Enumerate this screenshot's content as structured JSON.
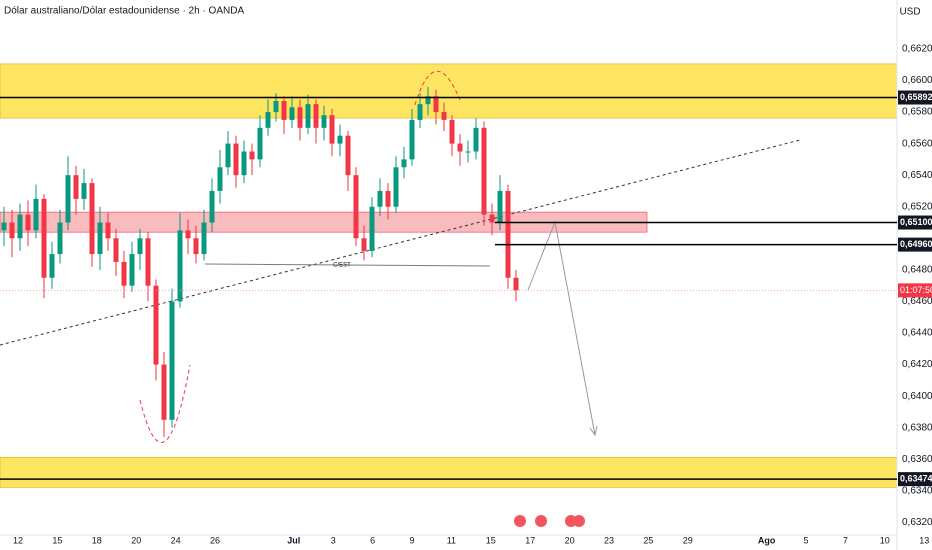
{
  "chart_data": {
    "type": "candlestick",
    "title": "Dólar australiano/Dólar estadounidense · 2h · OANDA",
    "currency": "USD",
    "up_color": "#089981",
    "down_color": "#f23645",
    "ylim": [
      0.6312,
      0.6651
    ],
    "yticks": [
      {
        "value": 0.662,
        "label": "0,66200"
      },
      {
        "value": 0.66,
        "label": "0,66000"
      },
      {
        "value": 0.658,
        "label": "0,65800"
      },
      {
        "value": 0.656,
        "label": "0,65600"
      },
      {
        "value": 0.654,
        "label": "0,65400"
      },
      {
        "value": 0.652,
        "label": "0,65200"
      },
      {
        "value": 0.648,
        "label": "0,64800"
      },
      {
        "value": 0.646,
        "label": "0,64600"
      },
      {
        "value": 0.644,
        "label": "0,64400"
      },
      {
        "value": 0.642,
        "label": "0,64200"
      },
      {
        "value": 0.64,
        "label": "0,64000"
      },
      {
        "value": 0.638,
        "label": "0,63800"
      },
      {
        "value": 0.636,
        "label": "0,63600"
      },
      {
        "value": 0.634,
        "label": "0,63400"
      },
      {
        "value": 0.632,
        "label": "0,63200"
      }
    ],
    "categories": [
      "12",
      "15",
      "18",
      "20",
      "24",
      "26",
      null,
      "Jul",
      "3",
      "6",
      "9",
      "11",
      "15",
      "17",
      "20",
      "23",
      "25",
      "29",
      null,
      "Ago",
      "5",
      "7",
      "10",
      "13"
    ],
    "candles": [
      [
        0.6505,
        0.652,
        0.6495,
        0.651
      ],
      [
        0.651,
        0.6518,
        0.6488,
        0.65
      ],
      [
        0.65,
        0.6522,
        0.6492,
        0.6515
      ],
      [
        0.6515,
        0.6524,
        0.6495,
        0.6505
      ],
      [
        0.6505,
        0.6534,
        0.65,
        0.6525
      ],
      [
        0.6525,
        0.6528,
        0.6462,
        0.6475
      ],
      [
        0.6475,
        0.6498,
        0.6468,
        0.649
      ],
      [
        0.649,
        0.6518,
        0.6484,
        0.651
      ],
      [
        0.651,
        0.6552,
        0.6505,
        0.654
      ],
      [
        0.654,
        0.6546,
        0.6515,
        0.6525
      ],
      [
        0.6525,
        0.6544,
        0.6518,
        0.6535
      ],
      [
        0.6535,
        0.6538,
        0.6482,
        0.649
      ],
      [
        0.649,
        0.652,
        0.648,
        0.651
      ],
      [
        0.651,
        0.6516,
        0.6492,
        0.65
      ],
      [
        0.65,
        0.6506,
        0.6476,
        0.6485
      ],
      [
        0.6485,
        0.6492,
        0.6462,
        0.647
      ],
      [
        0.647,
        0.6498,
        0.6466,
        0.649
      ],
      [
        0.649,
        0.6506,
        0.648,
        0.65
      ],
      [
        0.65,
        0.6504,
        0.646,
        0.647
      ],
      [
        0.647,
        0.6474,
        0.641,
        0.642
      ],
      [
        0.642,
        0.6428,
        0.6374,
        0.6385
      ],
      [
        0.6385,
        0.6468,
        0.638,
        0.646
      ],
      [
        0.646,
        0.6516,
        0.6456,
        0.6505
      ],
      [
        0.6505,
        0.6512,
        0.649,
        0.65
      ],
      [
        0.65,
        0.6508,
        0.6484,
        0.649
      ],
      [
        0.649,
        0.6518,
        0.6486,
        0.651
      ],
      [
        0.651,
        0.6538,
        0.6504,
        0.653
      ],
      [
        0.653,
        0.6556,
        0.6522,
        0.6545
      ],
      [
        0.6545,
        0.6568,
        0.654,
        0.656
      ],
      [
        0.656,
        0.6565,
        0.6532,
        0.654
      ],
      [
        0.654,
        0.6562,
        0.6535,
        0.6555
      ],
      [
        0.6555,
        0.656,
        0.654,
        0.655
      ],
      [
        0.655,
        0.6578,
        0.6545,
        0.657
      ],
      [
        0.657,
        0.6588,
        0.6565,
        0.658
      ],
      [
        0.658,
        0.6592,
        0.6574,
        0.6587
      ],
      [
        0.6587,
        0.659,
        0.6566,
        0.6575
      ],
      [
        0.6575,
        0.659,
        0.657,
        0.6583
      ],
      [
        0.6583,
        0.6588,
        0.6562,
        0.657
      ],
      [
        0.657,
        0.6591,
        0.6566,
        0.6585
      ],
      [
        0.6585,
        0.6588,
        0.656,
        0.657
      ],
      [
        0.657,
        0.6584,
        0.6562,
        0.6578
      ],
      [
        0.6578,
        0.6582,
        0.6552,
        0.656
      ],
      [
        0.656,
        0.6572,
        0.6552,
        0.6565
      ],
      [
        0.6565,
        0.6568,
        0.653,
        0.654
      ],
      [
        0.654,
        0.6545,
        0.6495,
        0.65
      ],
      [
        0.65,
        0.6508,
        0.6486,
        0.6492
      ],
      [
        0.6492,
        0.6526,
        0.6488,
        0.652
      ],
      [
        0.652,
        0.6538,
        0.6514,
        0.653
      ],
      [
        0.653,
        0.6535,
        0.6512,
        0.652
      ],
      [
        0.652,
        0.6552,
        0.6516,
        0.6545
      ],
      [
        0.6545,
        0.6558,
        0.6538,
        0.655
      ],
      [
        0.655,
        0.6582,
        0.6546,
        0.6575
      ],
      [
        0.6575,
        0.6592,
        0.657,
        0.6585
      ],
      [
        0.6585,
        0.6596,
        0.6578,
        0.659
      ],
      [
        0.659,
        0.6594,
        0.6572,
        0.658
      ],
      [
        0.658,
        0.6586,
        0.6568,
        0.6575
      ],
      [
        0.6575,
        0.6578,
        0.6552,
        0.656
      ],
      [
        0.656,
        0.6566,
        0.6546,
        0.6555
      ],
      [
        0.6555,
        0.6562,
        0.6548,
        0.6555
      ],
      [
        0.6555,
        0.6576,
        0.655,
        0.657
      ],
      [
        0.657,
        0.6574,
        0.6508,
        0.6515
      ],
      [
        0.6515,
        0.6522,
        0.6502,
        0.651
      ],
      [
        0.651,
        0.654,
        0.6505,
        0.653
      ],
      [
        0.653,
        0.6534,
        0.6468,
        0.6475
      ],
      [
        0.6475,
        0.648,
        0.646,
        0.6467
      ]
    ],
    "zones": [
      {
        "range": [
          0.66105,
          0.65762
        ],
        "color": "#fde047"
      },
      {
        "range": [
          0.65166,
          0.65039
        ],
        "color": "#f6a5aa"
      },
      {
        "range": [
          0.63612,
          0.63422
        ],
        "color": "#fde047"
      }
    ],
    "levels": [
      {
        "value": 0.65892,
        "label": "0,65892"
      },
      {
        "value": 0.651,
        "label": "0,65100"
      },
      {
        "value": 0.6496,
        "label": "0,64960"
      },
      {
        "value": 0.63474,
        "label": "0,63474"
      }
    ],
    "countdown": {
      "value": 0.6467,
      "label": "01:07:50"
    },
    "annotation": "C/EST"
  }
}
